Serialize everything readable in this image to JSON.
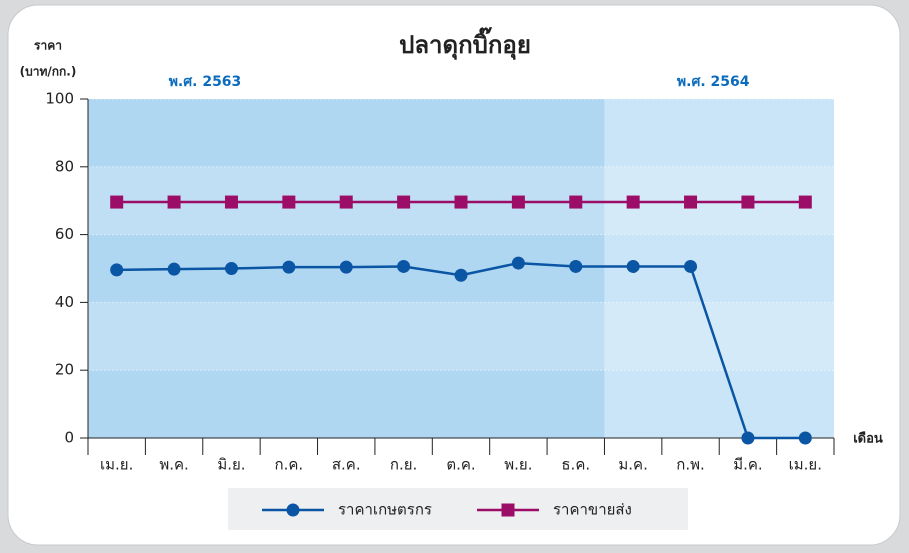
{
  "chart_data": {
    "type": "line",
    "title": "ปลาดุกบิ๊กอุย",
    "y_label_lines": [
      "ราคา",
      "(บาท/กก.)"
    ],
    "x_label": "เดือน",
    "periods": [
      {
        "label": "พ.ศ. 2563",
        "from": 0,
        "to": 8,
        "color": "#afd7f2"
      },
      {
        "label": "พ.ศ. 2564",
        "from": 9,
        "to": 12,
        "color": "#c9e5f7"
      }
    ],
    "categories": [
      "เม.ย.",
      "พ.ค.",
      "มิ.ย.",
      "ก.ค.",
      "ส.ค.",
      "ก.ย.",
      "ต.ค.",
      "พ.ย.",
      "ธ.ค.",
      "ม.ค.",
      "ก.พ.",
      "มี.ค.",
      "เม.ย."
    ],
    "series": [
      {
        "name": "ราคาเกษตรกร",
        "color": "#0b55a5",
        "marker": "circle",
        "values": [
          49.6,
          49.8,
          50,
          50.4,
          50.4,
          50.6,
          48,
          51.6,
          50.6,
          50.6,
          50.6,
          0,
          0
        ]
      },
      {
        "name": "ราคาขายส่ง",
        "color": "#9c0d68",
        "marker": "square",
        "values": [
          69.6,
          69.6,
          69.6,
          69.6,
          69.6,
          69.6,
          69.6,
          69.6,
          69.6,
          69.6,
          69.6,
          69.6,
          69.6
        ]
      }
    ],
    "ylim": [
      0,
      100
    ],
    "yticks": [
      0,
      20,
      40,
      60,
      80,
      100
    ],
    "grid": true
  }
}
